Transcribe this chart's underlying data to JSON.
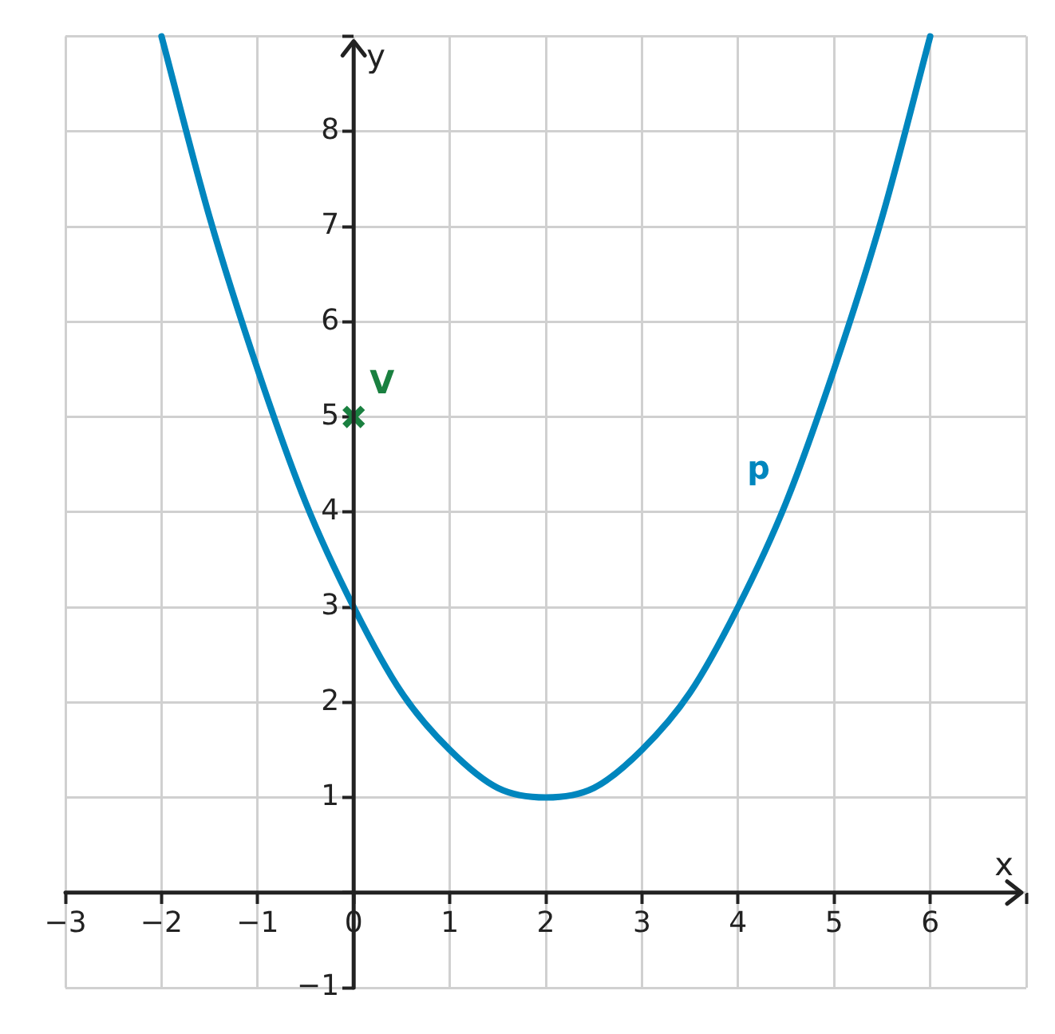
{
  "chart_data": {
    "type": "line",
    "xlabel": "x",
    "ylabel": "y",
    "xlim": [
      -3,
      7
    ],
    "ylim": [
      -1,
      9
    ],
    "xticks": [
      -3,
      -2,
      -1,
      0,
      1,
      2,
      3,
      4,
      5,
      6,
      {
        "value": 7,
        "label": null
      }
    ],
    "yticks": [
      -1,
      {
        "value": 0,
        "label": null
      },
      1,
      2,
      3,
      4,
      5,
      6,
      7,
      8,
      {
        "value": 9,
        "label": null
      }
    ],
    "grid": true,
    "line_style": "solid",
    "series": [
      {
        "name": "p",
        "color": "#0086be",
        "x": [
          -2,
          -1.5,
          -1,
          -0.5,
          0,
          0.5,
          1,
          1.5,
          2,
          2.5,
          3,
          3.5,
          4,
          4.5,
          5,
          5.5,
          6
        ],
        "values": [
          9,
          7.1,
          5.5,
          4.1,
          3,
          2.1,
          1.5,
          1.1,
          1,
          1.1,
          1.5,
          2.1,
          3,
          4.1,
          5.5,
          7.1,
          9
        ]
      },
      {
        "name": "V",
        "type": "scatter",
        "marker": "cross",
        "color": "#1a8040",
        "x": [
          0
        ],
        "values": [
          5
        ]
      }
    ]
  }
}
